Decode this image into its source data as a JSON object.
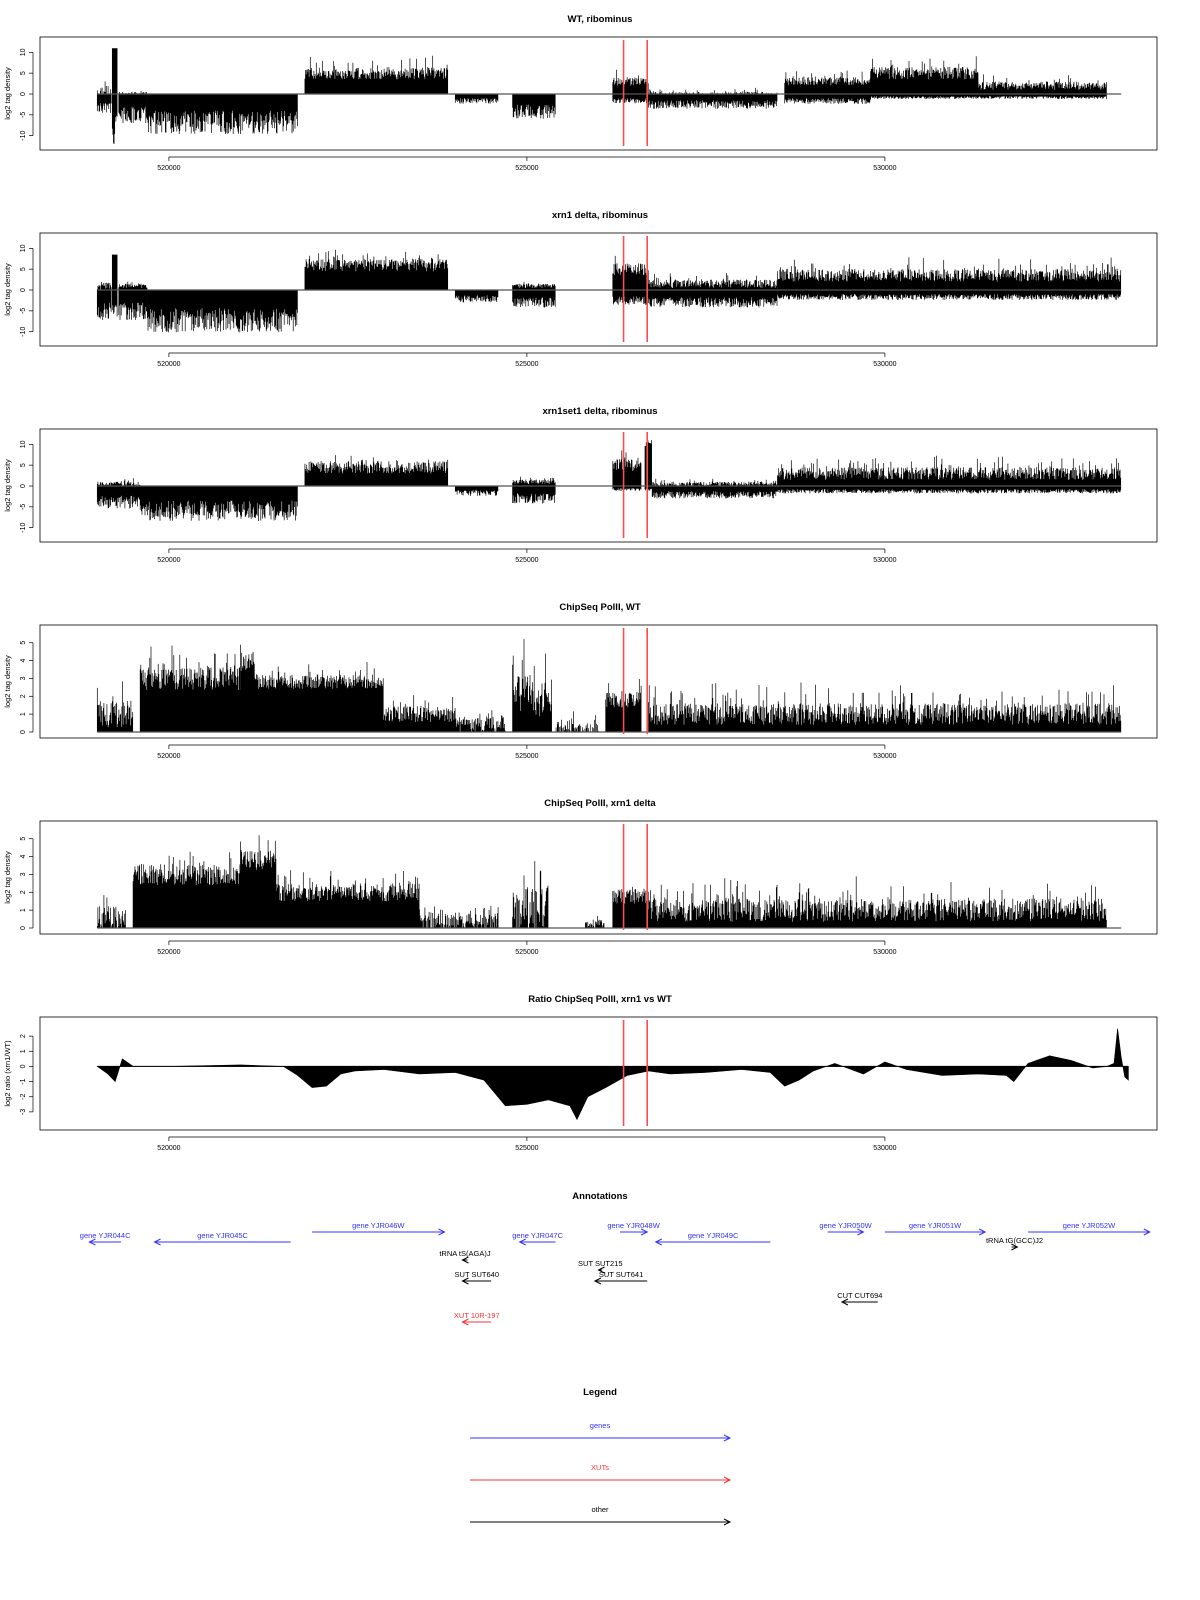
{
  "colors": {
    "gene": "#3333ff",
    "xut": "#ff3333",
    "other": "#000000",
    "marker": "#ff4d4d",
    "trace": "#000000"
  },
  "chart_data": [
    {
      "type": "area",
      "title": "WT, ribominus",
      "ylabel": "log2 tag density",
      "ylim": [
        -12,
        12
      ],
      "yticks": [
        -10,
        -5,
        0,
        5,
        10
      ],
      "ytick_labels": [
        "-10",
        "-5",
        "0",
        "5",
        "10"
      ],
      "xlim": [
        518200,
        533800
      ],
      "xticks": [
        520000,
        525000,
        530000
      ],
      "xtick_labels": [
        "520000",
        "525000",
        "530000"
      ],
      "markers": [
        526350,
        526680
      ],
      "segments": [
        {
          "from": 519000,
          "to": 519200,
          "y": 0.0,
          "dy": 4,
          "neg": 4.0
        },
        {
          "from": 519210,
          "to": 519280,
          "y": 11.0,
          "dy": 0,
          "neg": 10.0
        },
        {
          "from": 519300,
          "to": 519700,
          "y": 0.0,
          "dy": 1,
          "neg": 6.0
        },
        {
          "from": 519700,
          "to": 521800,
          "y": 0.0,
          "dy": 0,
          "neg": 8.0
        },
        {
          "from": 521900,
          "to": 523900,
          "y": 5.0,
          "dy": 3,
          "neg": 0.0
        },
        {
          "from": 524000,
          "to": 524600,
          "y": 0.0,
          "dy": 0,
          "neg": 2.0
        },
        {
          "from": 524800,
          "to": 525400,
          "y": 0.0,
          "dy": 0,
          "neg": 5.0
        },
        {
          "from": 526200,
          "to": 526700,
          "y": 3.0,
          "dy": 2,
          "neg": 2.0
        },
        {
          "from": 526700,
          "to": 528500,
          "y": 0.0,
          "dy": 1,
          "neg": 3.0
        },
        {
          "from": 528600,
          "to": 529800,
          "y": 3.0,
          "dy": 2,
          "neg": 2.0
        },
        {
          "from": 529800,
          "to": 531300,
          "y": 5.0,
          "dy": 3,
          "neg": 1.0
        },
        {
          "from": 531300,
          "to": 533100,
          "y": 2.0,
          "dy": 2,
          "neg": 1.0
        }
      ]
    },
    {
      "type": "area",
      "title": "xrn1 delta, ribominus",
      "ylabel": "log2 tag density",
      "ylim": [
        -12,
        12
      ],
      "yticks": [
        -10,
        -5,
        0,
        5,
        10
      ],
      "ytick_labels": [
        "-10",
        "-5",
        "0",
        "5",
        "10"
      ],
      "xlim": [
        518200,
        533800
      ],
      "xticks": [
        520000,
        525000,
        530000
      ],
      "xtick_labels": [
        "520000",
        "525000",
        "530000"
      ],
      "markers": [
        526350,
        526680
      ],
      "segments": [
        {
          "from": 519000,
          "to": 519200,
          "y": 1.0,
          "dy": 2,
          "neg": 6.0
        },
        {
          "from": 519210,
          "to": 519280,
          "y": 8.5,
          "dy": 0,
          "neg": 6.0
        },
        {
          "from": 519300,
          "to": 519700,
          "y": 1.0,
          "dy": 1,
          "neg": 6.0
        },
        {
          "from": 519700,
          "to": 521800,
          "y": 0.0,
          "dy": 0,
          "neg": 8.5
        },
        {
          "from": 521900,
          "to": 523900,
          "y": 6.0,
          "dy": 3,
          "neg": 0.0
        },
        {
          "from": 524000,
          "to": 524600,
          "y": 0.0,
          "dy": 0,
          "neg": 2.5
        },
        {
          "from": 524800,
          "to": 525400,
          "y": 1.0,
          "dy": 1,
          "neg": 3.5
        },
        {
          "from": 526200,
          "to": 526700,
          "y": 5.0,
          "dy": 3,
          "neg": 3.0
        },
        {
          "from": 526700,
          "to": 528500,
          "y": 1.5,
          "dy": 2,
          "neg": 3.5
        },
        {
          "from": 528500,
          "to": 533300,
          "y": 3.5,
          "dy": 3,
          "neg": 2.0
        }
      ]
    },
    {
      "type": "area",
      "title": "xrn1set1 delta, ribominus",
      "ylabel": "log2 tag density",
      "ylim": [
        -12,
        12
      ],
      "yticks": [
        -10,
        -5,
        0,
        5,
        10
      ],
      "ytick_labels": [
        "-10",
        "-5",
        "0",
        "5",
        "10"
      ],
      "xlim": [
        518200,
        533800
      ],
      "xticks": [
        520000,
        525000,
        530000
      ],
      "xtick_labels": [
        "520000",
        "525000",
        "530000"
      ],
      "markers": [
        526350,
        526680
      ],
      "segments": [
        {
          "from": 519000,
          "to": 519600,
          "y": 0.5,
          "dy": 1,
          "neg": 4.5
        },
        {
          "from": 519600,
          "to": 521800,
          "y": 0.0,
          "dy": 0,
          "neg": 7.0
        },
        {
          "from": 521900,
          "to": 523900,
          "y": 4.5,
          "dy": 3,
          "neg": 0.0
        },
        {
          "from": 524000,
          "to": 524600,
          "y": 0.0,
          "dy": 0,
          "neg": 2.0
        },
        {
          "from": 524800,
          "to": 525400,
          "y": 1.0,
          "dy": 1,
          "neg": 3.5
        },
        {
          "from": 526200,
          "to": 526600,
          "y": 5.0,
          "dy": 3,
          "neg": 1.0
        },
        {
          "from": 526650,
          "to": 526750,
          "y": 10.0,
          "dy": 1,
          "neg": 1.0
        },
        {
          "from": 526750,
          "to": 528500,
          "y": 0.5,
          "dy": 1,
          "neg": 2.5
        },
        {
          "from": 528500,
          "to": 533300,
          "y": 3.0,
          "dy": 3,
          "neg": 1.5
        }
      ]
    },
    {
      "type": "area",
      "title": "ChipSeq PolII, WT",
      "ylabel": "log2 tag density",
      "ylim": [
        0,
        5.6
      ],
      "yticks": [
        0,
        1,
        2,
        3,
        4,
        5
      ],
      "ytick_labels": [
        "0",
        "1",
        "2",
        "3",
        "4",
        "5"
      ],
      "xlim": [
        518200,
        533800
      ],
      "xticks": [
        520000,
        525000,
        530000
      ],
      "xtick_labels": [
        "520000",
        "525000",
        "530000"
      ],
      "markers": [
        526350,
        526680
      ],
      "segments": [
        {
          "from": 519000,
          "to": 519500,
          "y": 1.0,
          "dy": 1.5,
          "neg": 0
        },
        {
          "from": 519600,
          "to": 521000,
          "y": 3.0,
          "dy": 1.3,
          "neg": 0
        },
        {
          "from": 521000,
          "to": 521200,
          "y": 4.0,
          "dy": 1.2,
          "neg": 0
        },
        {
          "from": 521200,
          "to": 523000,
          "y": 2.8,
          "dy": 0.8,
          "neg": 0
        },
        {
          "from": 523000,
          "to": 524000,
          "y": 1.0,
          "dy": 0.9,
          "neg": 0
        },
        {
          "from": 524000,
          "to": 524700,
          "y": 0.4,
          "dy": 0.9,
          "neg": 0
        },
        {
          "from": 524800,
          "to": 525350,
          "y": 2.0,
          "dy": 2.3,
          "neg": 0
        },
        {
          "from": 525400,
          "to": 526000,
          "y": 0.1,
          "dy": 0.8,
          "neg": 0
        },
        {
          "from": 526100,
          "to": 526600,
          "y": 1.8,
          "dy": 0.9,
          "neg": 0
        },
        {
          "from": 526700,
          "to": 533300,
          "y": 1.0,
          "dy": 1.2,
          "neg": 0
        }
      ]
    },
    {
      "type": "area",
      "title": "ChipSeq PolII, xrn1 delta",
      "ylabel": "log2 tag density",
      "ylim": [
        0,
        5.6
      ],
      "yticks": [
        0,
        1,
        2,
        3,
        4,
        5
      ],
      "ytick_labels": [
        "0",
        "1",
        "2",
        "3",
        "4",
        "5"
      ],
      "xlim": [
        518200,
        533800
      ],
      "xticks": [
        520000,
        525000,
        530000
      ],
      "xtick_labels": [
        "520000",
        "525000",
        "530000"
      ],
      "markers": [
        526350,
        526680
      ],
      "segments": [
        {
          "from": 519000,
          "to": 519400,
          "y": 0.5,
          "dy": 1.5,
          "neg": 0
        },
        {
          "from": 519500,
          "to": 521000,
          "y": 3.0,
          "dy": 1.2,
          "neg": 0
        },
        {
          "from": 521000,
          "to": 521500,
          "y": 3.8,
          "dy": 1.1,
          "neg": 0
        },
        {
          "from": 521500,
          "to": 523500,
          "y": 2.0,
          "dy": 1.0,
          "neg": 0
        },
        {
          "from": 523500,
          "to": 524600,
          "y": 0.3,
          "dy": 1.2,
          "neg": 0
        },
        {
          "from": 524800,
          "to": 525300,
          "y": 1.0,
          "dy": 2.6,
          "neg": 0
        },
        {
          "from": 525800,
          "to": 526100,
          "y": 0.2,
          "dy": 0.6,
          "neg": 0
        },
        {
          "from": 526200,
          "to": 526700,
          "y": 1.8,
          "dy": 0.9,
          "neg": 0
        },
        {
          "from": 526700,
          "to": 533100,
          "y": 1.0,
          "dy": 1.3,
          "neg": 0
        }
      ]
    },
    {
      "type": "area",
      "title": "Ratio ChipSeq PolII, xrn1 vs WT",
      "ylabel": "log2 ratio (xrn1/WT)",
      "ylim": [
        -3.8,
        2.8
      ],
      "yticks": [
        -3,
        -2,
        -1,
        0,
        1,
        2
      ],
      "ytick_labels": [
        "-3",
        "-2",
        "-1",
        "0",
        "1",
        "2"
      ],
      "xlim": [
        518200,
        533800
      ],
      "xticks": [
        520000,
        525000,
        530000
      ],
      "xtick_labels": [
        "520000",
        "525000",
        "530000"
      ],
      "markers": [
        526350,
        526680
      ],
      "profile": [
        [
          519000,
          0.0
        ],
        [
          519150,
          -0.5
        ],
        [
          519250,
          -1.0
        ],
        [
          519350,
          0.5
        ],
        [
          519500,
          0.0
        ],
        [
          520000,
          0.0
        ],
        [
          521000,
          0.1
        ],
        [
          521600,
          0.0
        ],
        [
          521800,
          -0.6
        ],
        [
          522000,
          -1.4
        ],
        [
          522200,
          -1.3
        ],
        [
          522400,
          -0.5
        ],
        [
          522600,
          -0.3
        ],
        [
          523000,
          -0.2
        ],
        [
          523500,
          -0.5
        ],
        [
          524000,
          -0.4
        ],
        [
          524400,
          -0.9
        ],
        [
          524700,
          -2.6
        ],
        [
          525000,
          -2.5
        ],
        [
          525300,
          -2.2
        ],
        [
          525600,
          -2.6
        ],
        [
          525700,
          -3.5
        ],
        [
          525850,
          -2.0
        ],
        [
          526100,
          -1.4
        ],
        [
          526400,
          -0.6
        ],
        [
          526700,
          -0.3
        ],
        [
          527000,
          -0.5
        ],
        [
          527500,
          -0.4
        ],
        [
          528000,
          -0.2
        ],
        [
          528400,
          -0.4
        ],
        [
          528600,
          -1.3
        ],
        [
          528800,
          -0.9
        ],
        [
          529000,
          -0.3
        ],
        [
          529300,
          0.2
        ],
        [
          529700,
          -0.5
        ],
        [
          530000,
          0.3
        ],
        [
          530300,
          -0.2
        ],
        [
          530800,
          -0.6
        ],
        [
          531300,
          -0.5
        ],
        [
          531700,
          -0.6
        ],
        [
          531800,
          -1.0
        ],
        [
          532000,
          0.2
        ],
        [
          532300,
          0.7
        ],
        [
          532600,
          0.4
        ],
        [
          532900,
          -0.1
        ],
        [
          533100,
          0.0
        ],
        [
          533200,
          0.2
        ],
        [
          533250,
          2.5
        ],
        [
          533300,
          0.6
        ],
        [
          533350,
          -0.7
        ],
        [
          533400,
          -0.9
        ]
      ]
    }
  ],
  "annotations": {
    "title": "Annotations",
    "items": [
      {
        "label": "gene YJR044C",
        "kind": "gene",
        "row": 1,
        "from": 519330,
        "to": 518890
      },
      {
        "label": "gene YJR045C",
        "kind": "gene",
        "row": 1,
        "from": 521700,
        "to": 519800
      },
      {
        "label": "gene YJR046W",
        "kind": "gene",
        "row": 0,
        "from": 522000,
        "to": 523850
      },
      {
        "label": "gene YJR047C",
        "kind": "gene",
        "row": 1,
        "from": 525400,
        "to": 524900
      },
      {
        "label": "gene YJR048W",
        "kind": "gene",
        "row": 0,
        "from": 526300,
        "to": 526680
      },
      {
        "label": "gene YJR049C",
        "kind": "gene",
        "row": 1,
        "from": 528400,
        "to": 526800
      },
      {
        "label": "gene YJR050W",
        "kind": "gene",
        "row": 0,
        "from": 529200,
        "to": 529700
      },
      {
        "label": "gene YJR051W",
        "kind": "gene",
        "row": 0,
        "from": 530000,
        "to": 531400
      },
      {
        "label": "gene YJR052W",
        "kind": "gene",
        "row": 0,
        "from": 532000,
        "to": 533700
      },
      {
        "label": "tRNA tS(AGA)J",
        "kind": "other",
        "row": 2,
        "from": 524170,
        "to": 524100
      },
      {
        "label": "tRNA tG(GCC)J2",
        "kind": "other",
        "row": 3,
        "from": 531770,
        "to": 531850
      },
      {
        "label": "SUT SUT215",
        "kind": "other",
        "row": 4,
        "from": 526050,
        "to": 526000
      },
      {
        "label": "SUT SUT640",
        "kind": "other",
        "row": 5,
        "from": 524500,
        "to": 524100
      },
      {
        "label": "SUT SUT641",
        "kind": "other",
        "row": 5,
        "from": 526680,
        "to": 525950
      },
      {
        "label": "CUT CUT694",
        "kind": "other",
        "row": 6,
        "from": 529900,
        "to": 529400
      },
      {
        "label": "XUT 10R-197",
        "kind": "xut",
        "row": 7,
        "from": 524500,
        "to": 524100
      }
    ]
  },
  "legend": {
    "title": "Legend",
    "items": [
      {
        "label": "genes",
        "kind": "gene"
      },
      {
        "label": "XUTs",
        "kind": "xut"
      },
      {
        "label": "other",
        "kind": "other"
      }
    ]
  }
}
